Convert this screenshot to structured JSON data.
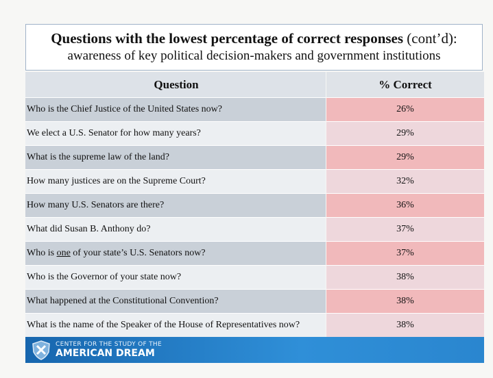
{
  "header": {
    "title": "Questions with the lowest percentage of correct responses",
    "title_suffix": "(cont’d):",
    "subtitle": "awareness of key political decision-makers and government institutions"
  },
  "table": {
    "columns": [
      "Question",
      "% Correct"
    ],
    "rows": [
      [
        [
          "Who is the Chief Justice of the United States now?"
        ],
        "26%"
      ],
      [
        [
          "We elect a U.S. Senator for how many years?"
        ],
        "29%"
      ],
      [
        [
          "What is the supreme law of the land?"
        ],
        "29%"
      ],
      [
        [
          "How many justices are on the Supreme Court?"
        ],
        "32%"
      ],
      [
        [
          "How many U.S. Senators are there?"
        ],
        "36%"
      ],
      [
        [
          "What did Susan B. Anthony do?"
        ],
        "37%"
      ],
      [
        [
          "Who is",
          "one",
          "of your state’s U.S. Senators now?"
        ],
        "37%"
      ],
      [
        [
          "Who is the Governor of your state now?"
        ],
        "38%"
      ],
      [
        [
          "What happened at the Constitutional Convention?"
        ],
        "38%"
      ],
      [
        [
          "What is the name of the Speaker of the House of Representatives now?"
        ],
        "38%"
      ]
    ]
  },
  "footer": {
    "org_line1": "CENTER FOR THE STUDY OF THE",
    "org_line2": "AMERICAN DREAM"
  }
}
